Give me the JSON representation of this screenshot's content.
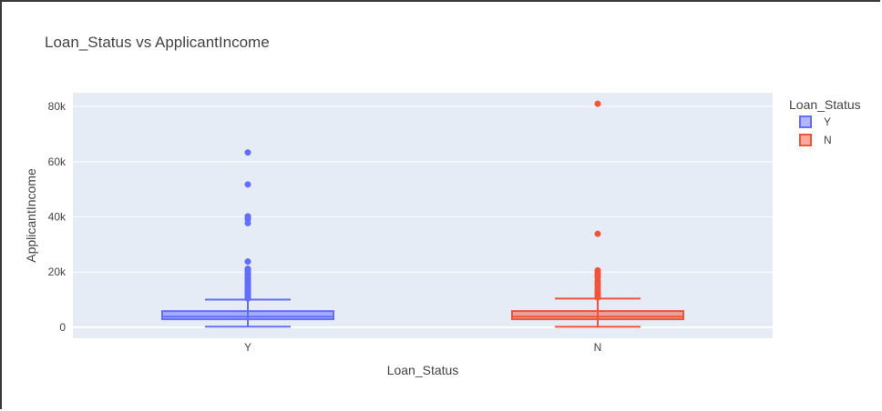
{
  "chart_data": {
    "type": "box",
    "title": "Loan_Status vs ApplicantIncome",
    "xlabel": "Loan_Status",
    "ylabel": "ApplicantIncome",
    "ylim": [
      -4000,
      85000
    ],
    "yticks": [
      0,
      20000,
      40000,
      60000,
      80000
    ],
    "ytick_labels": [
      "0",
      "20k",
      "40k",
      "60k",
      "80k"
    ],
    "categories": [
      "Y",
      "N"
    ],
    "grid": true,
    "legend": {
      "title": "Loan_Status",
      "placement": "right"
    },
    "series": [
      {
        "name": "Y",
        "category": "Y",
        "color": "#636efa",
        "fill": "rgba(99,110,250,0.5)",
        "min": 210,
        "q1": 2880,
        "median": 3830,
        "q3": 5830,
        "upper_fence": 10000,
        "outliers": [
          63340,
          51760,
          40200,
          39800,
          39150,
          37720,
          23800,
          21200,
          20800,
          20300,
          19900,
          19500,
          19000,
          18600,
          18200,
          17800,
          17300,
          16900,
          16500,
          16000,
          15600,
          15200,
          14800,
          14400,
          13900,
          13500,
          13200,
          12800,
          12400,
          12100,
          11800,
          11400,
          11000,
          10700,
          10400
        ]
      },
      {
        "name": "N",
        "category": "N",
        "color": "#ef553b",
        "fill": "rgba(239,85,59,0.5)",
        "min": 150,
        "q1": 2880,
        "median": 3830,
        "q3": 5860,
        "upper_fence": 10400,
        "outliers": [
          81000,
          33850,
          20600,
          20100,
          19700,
          19200,
          18500,
          17900,
          16700,
          16100,
          15500,
          14600,
          13700,
          13200,
          12500,
          12000,
          11500,
          11000,
          10800
        ]
      }
    ]
  }
}
